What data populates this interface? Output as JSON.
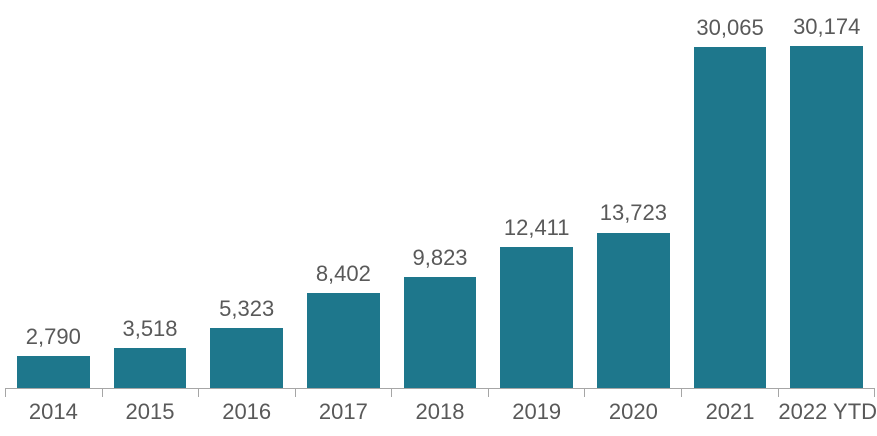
{
  "chart_data": {
    "type": "bar",
    "title": "",
    "xlabel": "",
    "ylabel": "",
    "categories": [
      "2014",
      "2015",
      "2016",
      "2017",
      "2018",
      "2019",
      "2020",
      "2021",
      "2022 YTD"
    ],
    "values": [
      2790,
      3518,
      5323,
      8402,
      9823,
      12411,
      13723,
      30065,
      30174
    ],
    "value_labels": [
      "2,790",
      "3,518",
      "5,323",
      "8,402",
      "9,823",
      "12,411",
      "13,723",
      "30,065",
      "30,174"
    ],
    "ylim": [
      0,
      30174
    ],
    "grid": false,
    "legend": "none",
    "data_labels": "above-bars",
    "colors": {
      "bar": "#1E778C",
      "axis_line": "#A6A6A6",
      "label_text": "#595959",
      "background": "#FFFFFF"
    }
  }
}
